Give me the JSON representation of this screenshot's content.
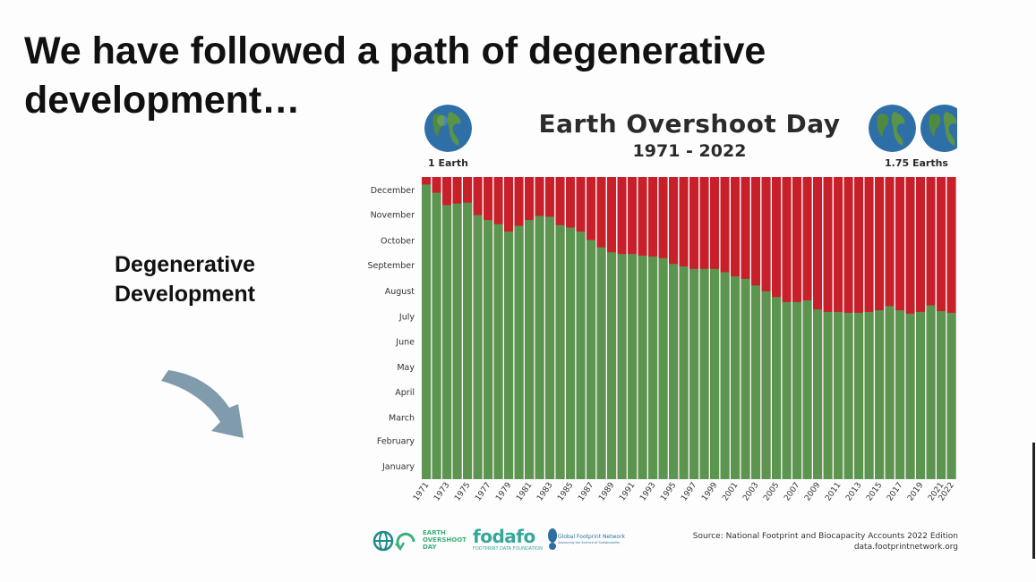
{
  "slide": {
    "headline": "We have followed a path of degenerative development…",
    "side_label_line1": "Degenerative",
    "side_label_line2": "Development",
    "arrow_icon": "curved-down-arrow"
  },
  "chart_data": {
    "type": "bar",
    "title": "Earth Overshoot Day",
    "subtitle": "1971 - 2022",
    "left_annotation": "1 Earth",
    "right_annotation": "1.75 Earths",
    "x": [
      1971,
      1972,
      1973,
      1974,
      1975,
      1976,
      1977,
      1978,
      1979,
      1980,
      1981,
      1982,
      1983,
      1984,
      1985,
      1986,
      1987,
      1988,
      1989,
      1990,
      1991,
      1992,
      1993,
      1994,
      1995,
      1996,
      1997,
      1998,
      1999,
      2000,
      2001,
      2002,
      2003,
      2004,
      2005,
      2006,
      2007,
      2008,
      2009,
      2010,
      2011,
      2012,
      2013,
      2014,
      2015,
      2016,
      2017,
      2018,
      2019,
      2020,
      2021,
      2022
    ],
    "x_tick_labels": [
      "1971",
      "1973",
      "1975",
      "1977",
      "1979",
      "1981",
      "1983",
      "1985",
      "1987",
      "1989",
      "1991",
      "1993",
      "1995",
      "1997",
      "1999",
      "2001",
      "2003",
      "2005",
      "2007",
      "2009",
      "2011",
      "2013",
      "2015",
      "2017",
      "2019",
      "2021",
      "2022"
    ],
    "y_tick_labels": [
      "January",
      "February",
      "March",
      "April",
      "May",
      "June",
      "July",
      "August",
      "September",
      "October",
      "November",
      "December"
    ],
    "ylabel_unit": "day of year",
    "ylim": [
      0,
      365
    ],
    "series": [
      {
        "name": "Overshoot day (green)",
        "color": "#5b9550",
        "values": [
          356,
          346,
          331,
          333,
          334,
          319,
          313,
          308,
          299,
          306,
          313,
          318,
          317,
          307,
          304,
          299,
          289,
          280,
          274,
          272,
          272,
          270,
          269,
          267,
          260,
          257,
          254,
          254,
          254,
          250,
          245,
          242,
          234,
          227,
          220,
          214,
          214,
          216,
          205,
          202,
          202,
          201,
          201,
          202,
          204,
          209,
          204,
          200,
          202,
          210,
          203,
          201
        ]
      },
      {
        "name": "Overshoot (red)",
        "color": "#c8202a",
        "values_note": "remainder of year above each green bar"
      }
    ]
  },
  "footer": {
    "logo1_line1": "EARTH",
    "logo1_line2": "OVERSHOOT",
    "logo1_line3": "DAY",
    "logo2_name": "fodafo",
    "logo2_sub": "FOOTPRINT DATA FOUNDATION",
    "logo3_name": "Global Footprint Network",
    "logo3_sub": "Advancing the Science of Sustainability",
    "source_line1": "Source: National Footprint and Biocapacity Accounts 2022 Edition",
    "source_line2": "data.footprintnetwork.org"
  }
}
